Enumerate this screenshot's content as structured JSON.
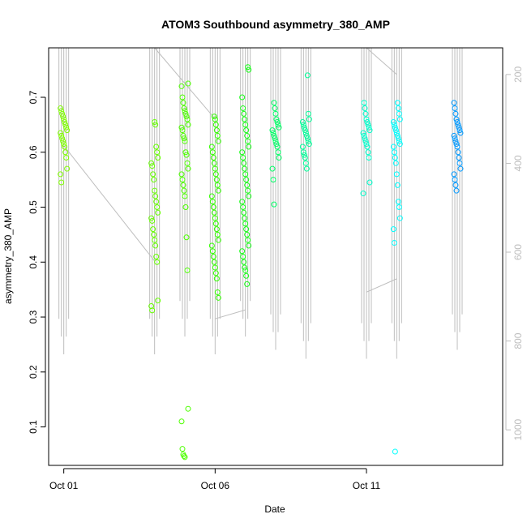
{
  "chart_data": {
    "type": "scatter",
    "title": "ATOM3 Southbound asymmetry_380_AMP",
    "xlabel": "Date",
    "ylabel": "asymmetry_380_AMP",
    "x_ticks": [
      "Oct 01",
      "Oct 06",
      "Oct 11"
    ],
    "y_ticks": [
      "0.1",
      "0.2",
      "0.3",
      "0.4",
      "0.5",
      "0.6",
      "0.7"
    ],
    "y2_ticks": [
      "200",
      "400",
      "600",
      "800",
      "1000"
    ],
    "xlim": [
      "2023-09-30T12:00",
      "2023-10-15T12:00"
    ],
    "ylim": [
      0.03,
      0.79
    ],
    "y2lim": [
      1080,
      140
    ],
    "y2_reversed": true,
    "grid": false,
    "marker": "open-circle",
    "colors": {
      "depth_trace": "#bebebe",
      "early": "#80ff00",
      "mid": "#00ff40",
      "late": "#00ffff",
      "end": "#0080ff"
    },
    "clusters": [
      {
        "date": "2023-10-01T00:00",
        "color": "#80ff00",
        "values": [
          0.68,
          0.675,
          0.67,
          0.665,
          0.66,
          0.655,
          0.65,
          0.645,
          0.64,
          0.635,
          0.63,
          0.625,
          0.62,
          0.615,
          0.61,
          0.6,
          0.59,
          0.57,
          0.56,
          0.545
        ]
      },
      {
        "date": "2023-10-04T00:00",
        "color": "#66ff00",
        "values": [
          0.655,
          0.65,
          0.61,
          0.6,
          0.59,
          0.58,
          0.575,
          0.56,
          0.55,
          0.53,
          0.52,
          0.51,
          0.5,
          0.49,
          0.48,
          0.475,
          0.46,
          0.45,
          0.44,
          0.43,
          0.41,
          0.4,
          0.33,
          0.32,
          0.312
        ]
      },
      {
        "date": "2023-10-05T00:00",
        "color": "#4dff00",
        "values": [
          0.725,
          0.72,
          0.7,
          0.69,
          0.68,
          0.675,
          0.67,
          0.665,
          0.66,
          0.65,
          0.645,
          0.64,
          0.63,
          0.625,
          0.62,
          0.6,
          0.595,
          0.58,
          0.57,
          0.56,
          0.55,
          0.54,
          0.53,
          0.52,
          0.5,
          0.445,
          0.385,
          0.133,
          0.11,
          0.06,
          0.05,
          0.047,
          0.045
        ]
      },
      {
        "date": "2023-10-06T00:00",
        "color": "#33ff00",
        "values": [
          0.665,
          0.66,
          0.65,
          0.64,
          0.63,
          0.62,
          0.61,
          0.6,
          0.59,
          0.58,
          0.57,
          0.56,
          0.55,
          0.54,
          0.53,
          0.52,
          0.51,
          0.5,
          0.49,
          0.48,
          0.47,
          0.46,
          0.45,
          0.44,
          0.43,
          0.42,
          0.41,
          0.4,
          0.39,
          0.38,
          0.37,
          0.345,
          0.335
        ]
      },
      {
        "date": "2023-10-07T00:00",
        "color": "#1aff1a",
        "values": [
          0.755,
          0.75,
          0.7,
          0.68,
          0.67,
          0.66,
          0.65,
          0.64,
          0.63,
          0.62,
          0.61,
          0.6,
          0.59,
          0.58,
          0.57,
          0.56,
          0.55,
          0.54,
          0.53,
          0.52,
          0.51,
          0.5,
          0.49,
          0.48,
          0.47,
          0.46,
          0.45,
          0.44,
          0.43,
          0.42,
          0.41,
          0.4,
          0.39,
          0.385,
          0.375,
          0.36
        ]
      },
      {
        "date": "2023-10-08T00:00",
        "color": "#00ff66",
        "values": [
          0.69,
          0.68,
          0.67,
          0.66,
          0.655,
          0.65,
          0.645,
          0.64,
          0.635,
          0.63,
          0.625,
          0.62,
          0.615,
          0.61,
          0.6,
          0.59,
          0.57,
          0.55,
          0.505
        ]
      },
      {
        "date": "2023-10-09T00:00",
        "color": "#00ff99",
        "values": [
          0.74,
          0.67,
          0.66,
          0.655,
          0.65,
          0.645,
          0.64,
          0.635,
          0.63,
          0.625,
          0.62,
          0.615,
          0.61,
          0.6,
          0.595,
          0.59,
          0.58,
          0.57
        ]
      },
      {
        "date": "2023-10-11T00:00",
        "color": "#00ffcc",
        "values": [
          0.69,
          0.68,
          0.67,
          0.66,
          0.655,
          0.65,
          0.645,
          0.64,
          0.635,
          0.63,
          0.625,
          0.62,
          0.615,
          0.61,
          0.6,
          0.59,
          0.545,
          0.525
        ]
      },
      {
        "date": "2023-10-12T00:00",
        "color": "#00ffff",
        "values": [
          0.69,
          0.68,
          0.67,
          0.66,
          0.655,
          0.65,
          0.645,
          0.64,
          0.635,
          0.63,
          0.625,
          0.62,
          0.615,
          0.61,
          0.6,
          0.59,
          0.58,
          0.56,
          0.54,
          0.51,
          0.5,
          0.48,
          0.46,
          0.435,
          0.055
        ]
      },
      {
        "date": "2023-10-14T00:00",
        "color": "#0099ff",
        "values": [
          0.69,
          0.68,
          0.67,
          0.66,
          0.655,
          0.65,
          0.645,
          0.64,
          0.635,
          0.63,
          0.625,
          0.62,
          0.615,
          0.61,
          0.6,
          0.59,
          0.58,
          0.57,
          0.56,
          0.55,
          0.54,
          0.53
        ]
      }
    ],
    "depth_trace": {
      "description": "grey secondary series on right axis (reversed), dense spikes at each cluster",
      "segments": [
        {
          "date": "2023-10-01T00:00",
          "top": 140,
          "bottom": 830
        },
        {
          "date": "2023-10-04T00:00",
          "top": 140,
          "bottom": 830
        },
        {
          "date": "2023-10-05T00:00",
          "top": 140,
          "bottom": 790
        },
        {
          "date": "2023-10-06T00:00",
          "top": 140,
          "bottom": 830
        },
        {
          "date": "2023-10-07T00:00",
          "top": 140,
          "bottom": 790
        },
        {
          "date": "2023-10-08T00:00",
          "top": 140,
          "bottom": 820
        },
        {
          "date": "2023-10-09T00:00",
          "top": 140,
          "bottom": 840
        },
        {
          "date": "2023-10-11T00:00",
          "top": 140,
          "bottom": 840
        },
        {
          "date": "2023-10-12T00:00",
          "top": 140,
          "bottom": 840
        },
        {
          "date": "2023-10-14T00:00",
          "top": 140,
          "bottom": 820
        }
      ],
      "connectors": [
        {
          "from_date": "2023-10-01T00:00",
          "from_depth": 360,
          "to_date": "2023-10-04T00:00",
          "to_depth": 620
        },
        {
          "from_date": "2023-10-04T00:00",
          "from_depth": 140,
          "to_date": "2023-10-06T00:00",
          "to_depth": 300
        },
        {
          "from_date": "2023-10-06T00:00",
          "from_depth": 750,
          "to_date": "2023-10-07T00:00",
          "to_depth": 730
        },
        {
          "from_date": "2023-10-11T00:00",
          "from_depth": 140,
          "to_date": "2023-10-12T00:00",
          "to_depth": 200
        },
        {
          "from_date": "2023-10-11T00:00",
          "from_depth": 690,
          "to_date": "2023-10-12T00:00",
          "to_depth": 660
        }
      ]
    }
  }
}
